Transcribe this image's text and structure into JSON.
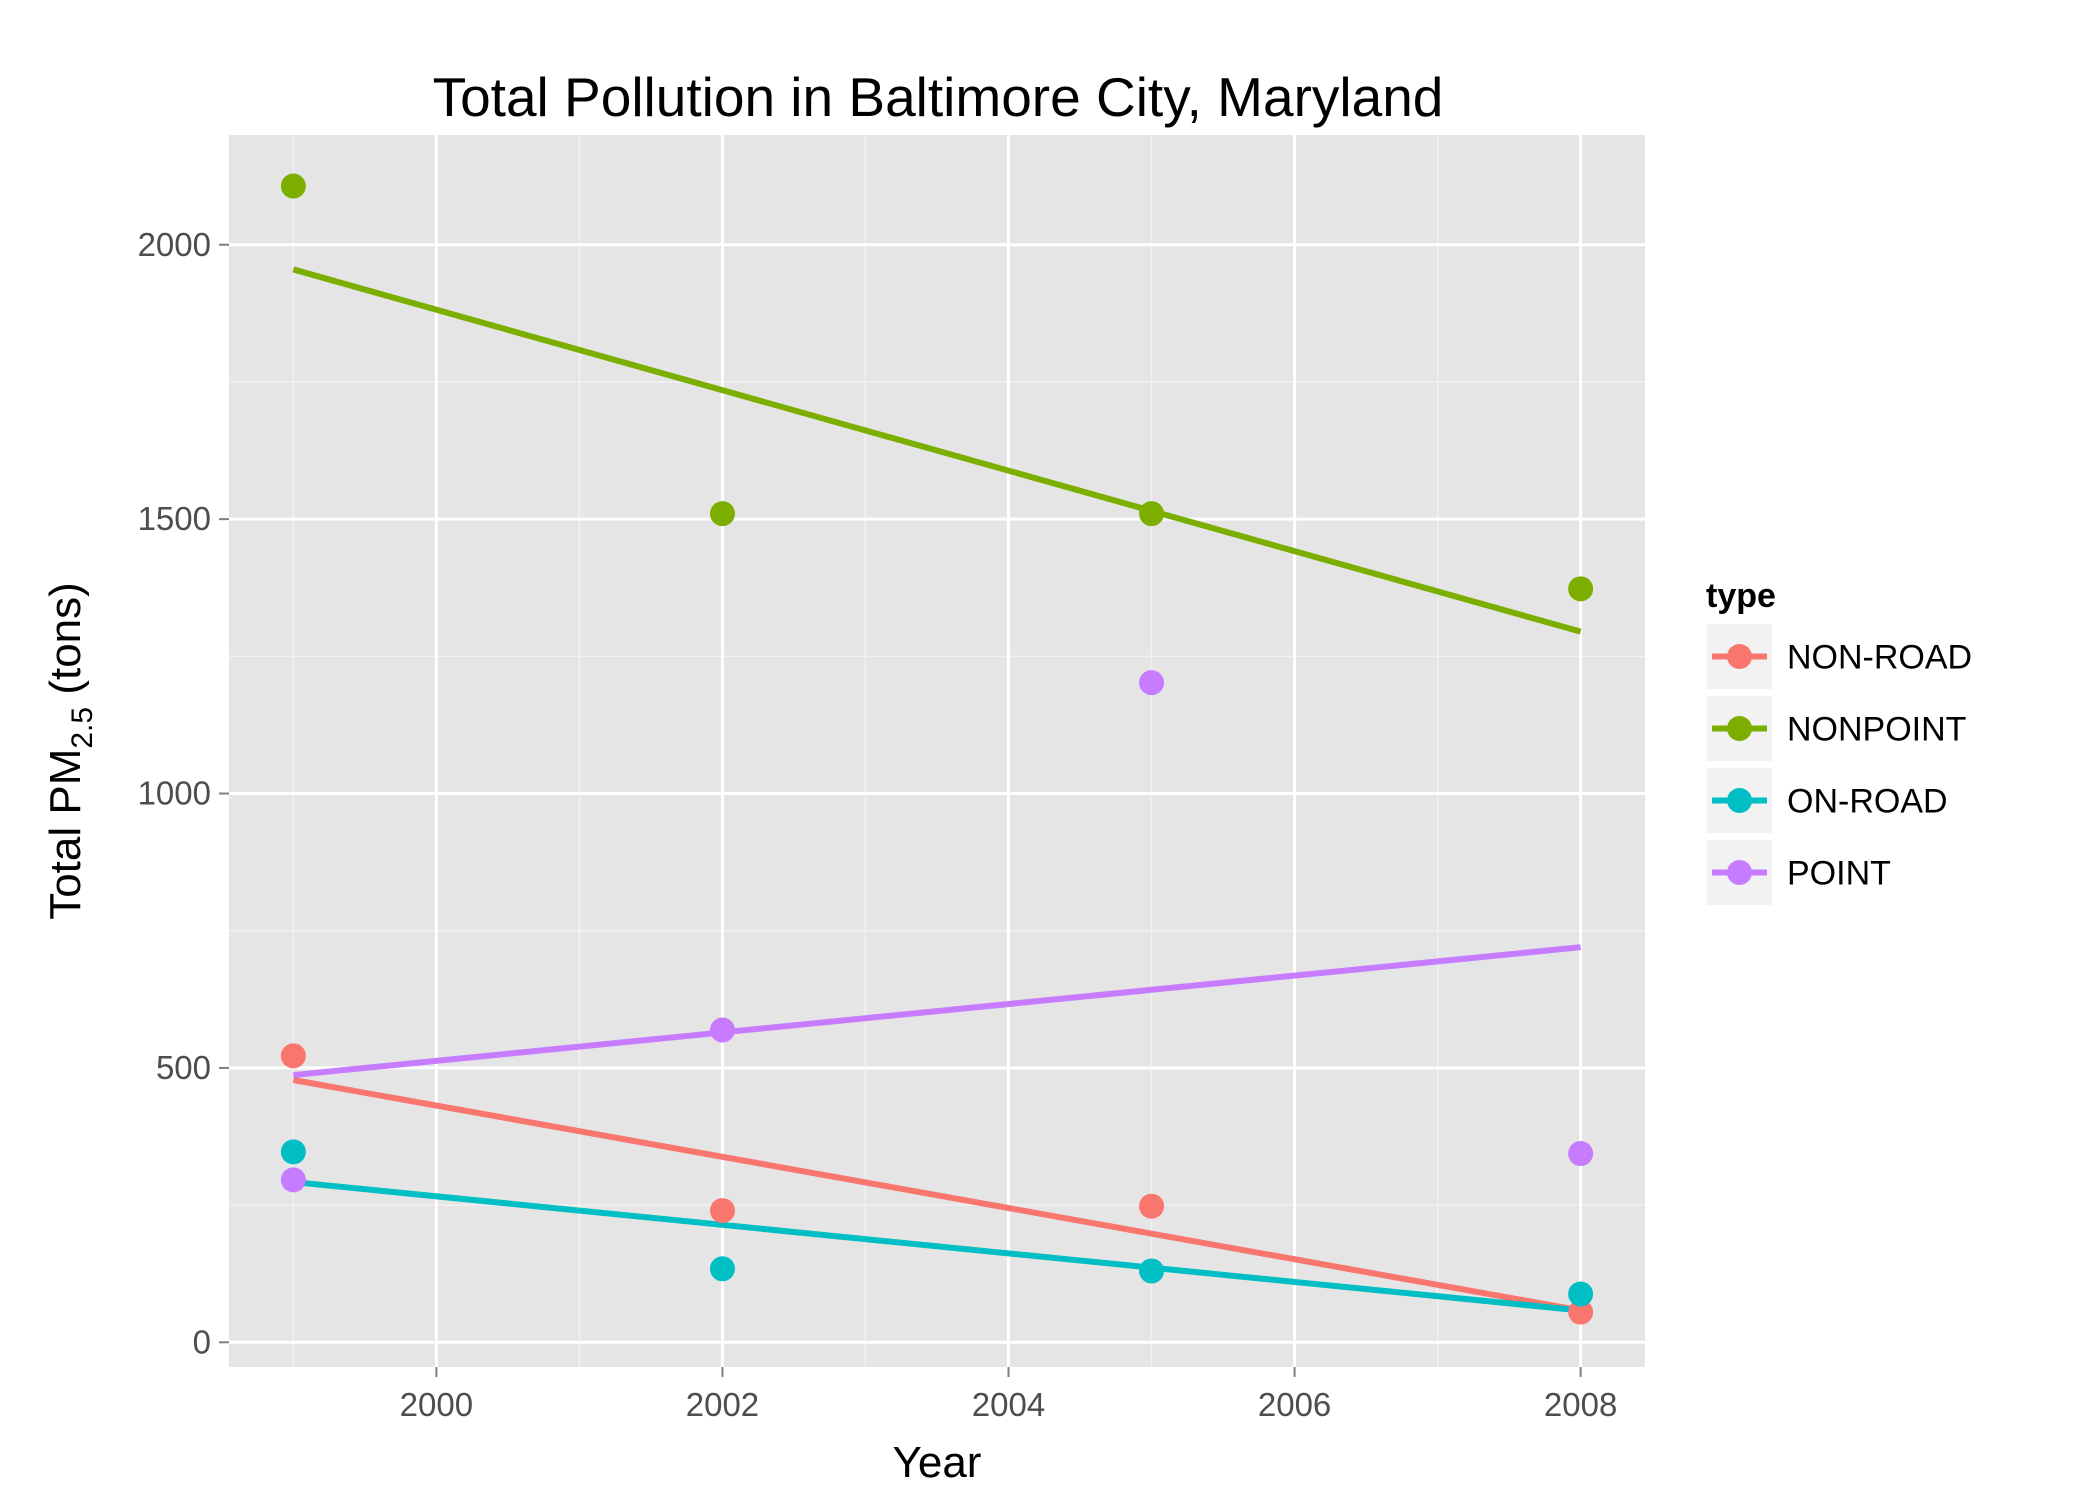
{
  "chart_data": {
    "type": "scatter",
    "title": "Total Pollution in Baltimore City, Maryland",
    "xlabel": "Year",
    "ylabel": {
      "main": "Total PM",
      "subscript": "2.5",
      "suffix": " (tons)"
    },
    "xlim": [
      1998.55,
      2008.45
    ],
    "ylim": [
      -45,
      2200
    ],
    "x_ticks": [
      2000,
      2002,
      2004,
      2006,
      2008
    ],
    "y_ticks": [
      0,
      500,
      1000,
      1500,
      2000
    ],
    "grid": true,
    "legend": {
      "title": "type",
      "position": "right"
    },
    "x": [
      1999,
      2002,
      2005,
      2008
    ],
    "series": [
      {
        "name": "NON-ROAD",
        "color": "#f8766d",
        "values": [
          522,
          240,
          248,
          55
        ],
        "trend": [
          [
            1999,
            478
          ],
          [
            2008,
            58
          ]
        ]
      },
      {
        "name": "NONPOINT",
        "color": "#7cae00",
        "values": [
          2107,
          1510,
          1510,
          1373
        ],
        "trend": [
          [
            1999,
            1955
          ],
          [
            2008,
            1295
          ]
        ]
      },
      {
        "name": "ON-ROAD",
        "color": "#00bfc4",
        "values": [
          347,
          134,
          130,
          88
        ],
        "trend": [
          [
            1999,
            292
          ],
          [
            2008,
            58
          ]
        ]
      },
      {
        "name": "POINT",
        "color": "#c77cff",
        "values": [
          296,
          569,
          1202,
          344
        ],
        "trend": [
          [
            1999,
            487
          ],
          [
            2008,
            720
          ]
        ]
      }
    ]
  }
}
